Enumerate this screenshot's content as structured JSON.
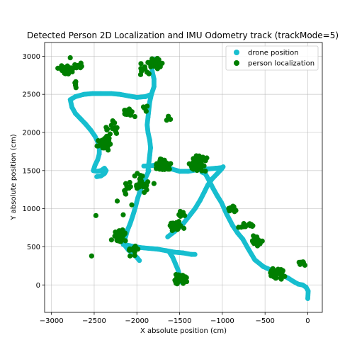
{
  "chart_data": {
    "type": "scatter",
    "title": "Detected Person 2D Localization and IMU Odometry track (trackMode=5)",
    "xlabel": "X absolute position (cm)",
    "ylabel": "Y absolute position (cm)",
    "xlim": [
      -3080,
      170
    ],
    "ylim": [
      -360,
      3180
    ],
    "xticks": [
      -3000,
      -2500,
      -2000,
      -1500,
      -1000,
      -500,
      0
    ],
    "yticks": [
      0,
      500,
      1000,
      1500,
      2000,
      2500,
      3000
    ],
    "grid": true,
    "legend_position": "top-right",
    "series": [
      {
        "name": "drone position",
        "color": "#17becf",
        "segments": [
          [
            [
              0,
              -180
            ],
            [
              5,
              -80
            ],
            [
              -20,
              -30
            ],
            [
              -60,
              0
            ],
            [
              -110,
              10
            ],
            [
              -160,
              40
            ],
            [
              -230,
              90
            ],
            [
              -320,
              140
            ],
            [
              -420,
              190
            ],
            [
              -520,
              240
            ],
            [
              -620,
              330
            ],
            [
              -700,
              480
            ],
            [
              -760,
              600
            ],
            [
              -820,
              680
            ],
            [
              -880,
              780
            ],
            [
              -950,
              930
            ],
            [
              -1010,
              1080
            ],
            [
              -1060,
              1170
            ],
            [
              -1110,
              1270
            ],
            [
              -1160,
              1380
            ],
            [
              -1200,
              1460
            ],
            [
              -1240,
              1480
            ]
          ],
          [
            [
              -1000,
              1540
            ],
            [
              -1080,
              1530
            ],
            [
              -1180,
              1520
            ],
            [
              -1300,
              1510
            ],
            [
              -1400,
              1490
            ],
            [
              -1500,
              1490
            ],
            [
              -1590,
              1520
            ],
            [
              -1690,
              1560
            ],
            [
              -1790,
              1570
            ],
            [
              -1860,
              1560
            ],
            [
              -1920,
              1560
            ]
          ],
          [
            [
              -1640,
              630
            ],
            [
              -1560,
              700
            ],
            [
              -1460,
              800
            ],
            [
              -1390,
              900
            ],
            [
              -1320,
              1000
            ],
            [
              -1260,
              1110
            ],
            [
              -1210,
              1220
            ],
            [
              -1170,
              1310
            ],
            [
              -1120,
              1390
            ],
            [
              -1060,
              1460
            ],
            [
              -1010,
              1520
            ],
            [
              -990,
              1550
            ]
          ],
          [
            [
              -1860,
              1500
            ],
            [
              -1900,
              1400
            ],
            [
              -1950,
              1270
            ],
            [
              -1990,
              1140
            ],
            [
              -2020,
              1010
            ],
            [
              -2050,
              900
            ],
            [
              -2080,
              800
            ],
            [
              -2110,
              720
            ],
            [
              -2130,
              640
            ],
            [
              -2150,
              570
            ],
            [
              -2160,
              530
            ]
          ],
          [
            [
              -2150,
              530
            ],
            [
              -2060,
              510
            ],
            [
              -1960,
              490
            ],
            [
              -1860,
              480
            ],
            [
              -1760,
              470
            ],
            [
              -1660,
              450
            ],
            [
              -1560,
              430
            ],
            [
              -1460,
              420
            ],
            [
              -1360,
              400
            ],
            [
              -1320,
              400
            ]
          ],
          [
            [
              -2150,
              530
            ],
            [
              -2100,
              460
            ],
            [
              -2040,
              400
            ],
            [
              -2000,
              360
            ],
            [
              -1970,
              320
            ]
          ],
          [
            [
              -1620,
              430
            ],
            [
              -1580,
              360
            ],
            [
              -1550,
              280
            ],
            [
              -1520,
              200
            ],
            [
              -1500,
              120
            ],
            [
              -1490,
              40
            ]
          ],
          [
            [
              -1870,
              1500
            ],
            [
              -1860,
              1600
            ],
            [
              -1850,
              1700
            ],
            [
              -1840,
              1800
            ],
            [
              -1850,
              1900
            ],
            [
              -1870,
              2000
            ],
            [
              -1880,
              2100
            ],
            [
              -1870,
              2200
            ],
            [
              -1860,
              2300
            ],
            [
              -1850,
              2400
            ],
            [
              -1830,
              2500
            ],
            [
              -1800,
              2600
            ],
            [
              -1800,
              2700
            ],
            [
              -1820,
              2800
            ],
            [
              -1830,
              2900
            ],
            [
              -1800,
              2960
            ],
            [
              -1760,
              2960
            ]
          ],
          [
            [
              -1830,
              2500
            ],
            [
              -1900,
              2470
            ],
            [
              -2000,
              2460
            ],
            [
              -2100,
              2480
            ],
            [
              -2200,
              2500
            ],
            [
              -2300,
              2510
            ],
            [
              -2420,
              2510
            ],
            [
              -2520,
              2510
            ],
            [
              -2620,
              2500
            ],
            [
              -2720,
              2470
            ],
            [
              -2780,
              2430
            ]
          ],
          [
            [
              -2780,
              2430
            ],
            [
              -2760,
              2330
            ],
            [
              -2720,
              2250
            ],
            [
              -2660,
              2180
            ],
            [
              -2600,
              2110
            ],
            [
              -2540,
              2030
            ],
            [
              -2490,
              1950
            ],
            [
              -2460,
              1880
            ],
            [
              -2440,
              1800
            ],
            [
              -2440,
              1720
            ],
            [
              -2460,
              1640
            ],
            [
              -2490,
              1570
            ],
            [
              -2510,
              1500
            ]
          ],
          [
            [
              -2510,
              1500
            ],
            [
              -2470,
              1490
            ],
            [
              -2420,
              1500
            ],
            [
              -2380,
              1530
            ],
            [
              -2360,
              1500
            ],
            [
              -2380,
              1460
            ],
            [
              -2420,
              1430
            ],
            [
              -2470,
              1420
            ]
          ]
        ]
      },
      {
        "name": "person localization",
        "color": "#007f00",
        "clusters": [
          {
            "center": [
              -2830,
              2820
            ],
            "spread": [
              60,
              40
            ],
            "count": 55
          },
          {
            "center": [
              -2680,
              2880
            ],
            "spread": [
              40,
              40
            ],
            "count": 8
          },
          {
            "center": [
              -2710,
              2620
            ],
            "spread": [
              30,
              40
            ],
            "count": 5
          },
          {
            "center": [
              -2380,
              1860
            ],
            "spread": [
              55,
              60
            ],
            "count": 60
          },
          {
            "center": [
              -2300,
              2050
            ],
            "spread": [
              80,
              80
            ],
            "count": 14
          },
          {
            "center": [
              -2080,
              2260
            ],
            "spread": [
              60,
              40
            ],
            "count": 18
          },
          {
            "center": [
              -1900,
              2300
            ],
            "spread": [
              30,
              30
            ],
            "count": 5
          },
          {
            "center": [
              -1780,
              2910
            ],
            "spread": [
              60,
              50
            ],
            "count": 35
          },
          {
            "center": [
              -1900,
              2810
            ],
            "spread": [
              60,
              60
            ],
            "count": 10
          },
          {
            "center": [
              -1650,
              2180
            ],
            "spread": [
              40,
              40
            ],
            "count": 4
          },
          {
            "center": [
              -1700,
              1570
            ],
            "spread": [
              80,
              60
            ],
            "count": 45
          },
          {
            "center": [
              -1300,
              1590
            ],
            "spread": [
              80,
              80
            ],
            "count": 55
          },
          {
            "center": [
              -1960,
              1320
            ],
            "spread": [
              80,
              120
            ],
            "count": 22
          },
          {
            "center": [
              -2140,
              1250
            ],
            "spread": [
              60,
              100
            ],
            "count": 10
          },
          {
            "center": [
              -1540,
              760
            ],
            "spread": [
              60,
              60
            ],
            "count": 25
          },
          {
            "center": [
              -1480,
              900
            ],
            "spread": [
              40,
              60
            ],
            "count": 8
          },
          {
            "center": [
              -2200,
              640
            ],
            "spread": [
              70,
              70
            ],
            "count": 40
          },
          {
            "center": [
              -2050,
              450
            ],
            "spread": [
              50,
              50
            ],
            "count": 14
          },
          {
            "center": [
              -1500,
              80
            ],
            "spread": [
              60,
              60
            ],
            "count": 45
          },
          {
            "center": [
              -880,
              1000
            ],
            "spread": [
              30,
              40
            ],
            "count": 14
          },
          {
            "center": [
              -720,
              780
            ],
            "spread": [
              60,
              30
            ],
            "count": 12
          },
          {
            "center": [
              -600,
              580
            ],
            "spread": [
              50,
              60
            ],
            "count": 22
          },
          {
            "center": [
              -340,
              150
            ],
            "spread": [
              80,
              80
            ],
            "count": 35
          },
          {
            "center": [
              -70,
              280
            ],
            "spread": [
              40,
              30
            ],
            "count": 8
          }
        ],
        "outliers": [
          [
            -2530,
            380
          ],
          [
            -2480,
            910
          ],
          [
            -2230,
            1100
          ],
          [
            -2160,
            920
          ],
          [
            -2060,
            1050
          ],
          [
            -1800,
            1330
          ],
          [
            -2780,
            2980
          ]
        ]
      }
    ]
  }
}
